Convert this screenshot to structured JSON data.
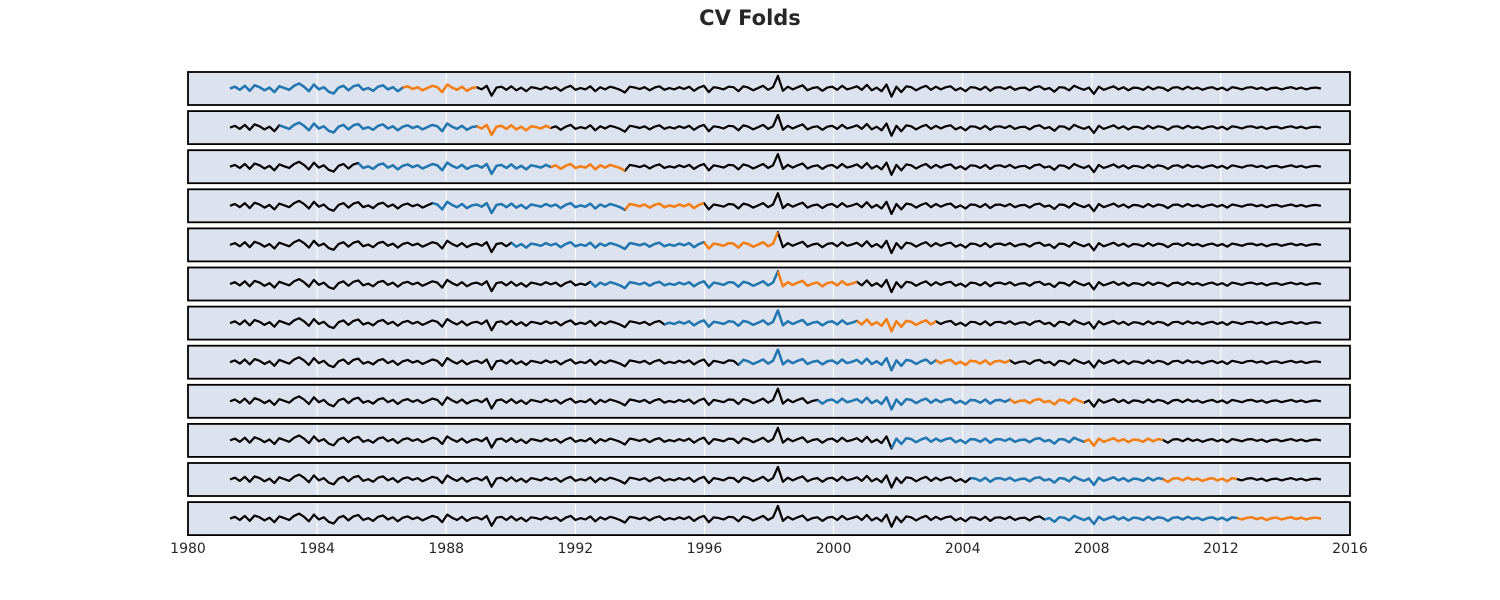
{
  "chart_data": {
    "type": "line",
    "title": "CV Folds",
    "xlabel": "",
    "ylabel": "",
    "xlim": [
      1980,
      2016
    ],
    "x_ticks": [
      "1980",
      "1984",
      "1988",
      "1992",
      "1996",
      "2000",
      "2004",
      "2008",
      "2012",
      "2016"
    ],
    "grid": true,
    "legend": "none",
    "series_x_range": [
      1981.3,
      2015.1
    ],
    "colors": {
      "full": "#000000",
      "train": "#1f77b4",
      "test": "#ff7f0e",
      "panel_bg": "#dde3ee",
      "grid": "#ffffff"
    },
    "series": [
      {
        "name": "",
        "values": [
          0.0,
          0.4,
          -0.3,
          0.6,
          -0.5,
          0.7,
          0.3,
          -0.4,
          0.2,
          -0.8,
          0.5,
          0.1,
          -0.3,
          0.6,
          1.1,
          0.4,
          -0.6,
          0.9,
          -0.2,
          0.3,
          -0.7,
          -1.1,
          0.2,
          0.6,
          -0.4,
          0.5,
          0.8,
          -0.3,
          0.1,
          -0.5,
          0.4,
          0.7,
          -0.2,
          0.3,
          -0.6,
          0.2,
          0.5,
          -0.1,
          0.3,
          -0.4,
          0.1,
          0.6,
          0.3,
          -0.8,
          0.9,
          0.2,
          -0.3,
          0.4,
          -0.5,
          0.1,
          0.3,
          -0.2,
          0.6,
          -1.6,
          0.2,
          0.4,
          -0.3,
          0.5,
          -0.4,
          0.2,
          -0.6,
          0.3,
          0.1,
          -0.2,
          0.4,
          -0.1,
          0.3,
          -0.5,
          0.2,
          0.6,
          -0.3,
          0.1,
          -0.2,
          0.5,
          -0.6,
          0.3,
          -0.2,
          0.4,
          0.1,
          -0.3,
          -0.9,
          0.4,
          0.2,
          -0.1,
          0.3,
          -0.4,
          0.2,
          0.5,
          -0.3,
          0.1,
          -0.2,
          0.3,
          -0.1,
          0.4,
          -0.5,
          0.2,
          0.6,
          -0.8,
          0.3,
          0.1,
          -0.2,
          0.4,
          0.3,
          -0.6,
          0.5,
          0.2,
          -0.4,
          0.1,
          0.6,
          -0.3,
          0.3,
          2.8,
          -0.5,
          0.4,
          -0.2,
          0.3,
          0.7,
          -0.4,
          0.1,
          0.3,
          -0.5,
          0.2,
          0.4,
          -0.3,
          0.6,
          -0.2,
          0.1,
          0.5,
          -0.3,
          0.8,
          -0.4,
          0.2,
          -0.6,
          0.9,
          -1.8,
          0.4,
          -0.8,
          0.5,
          0.3,
          -0.4,
          0.2,
          0.6,
          -0.3,
          0.4,
          -0.2,
          0.3,
          0.5,
          -0.4,
          0.1,
          -0.6,
          0.3,
          0.2,
          -0.3,
          0.4,
          -0.5,
          0.2,
          0.3,
          -0.1,
          0.4,
          -0.3,
          0.1,
          0.2,
          -0.4,
          0.3,
          0.5,
          -0.2,
          0.1,
          -0.7,
          0.3,
          0.2,
          -0.4,
          0.6,
          0.1,
          -0.3,
          0.2,
          -1.2,
          0.4,
          -0.3,
          0.1,
          0.5,
          -0.2,
          0.3,
          -0.4,
          0.2,
          0.1,
          -0.3,
          0.4,
          -0.2,
          0.3,
          0.1,
          -0.5,
          0.2,
          0.3,
          -0.2,
          0.4,
          -0.1,
          0.2,
          -0.3,
          0.1,
          0.3,
          -0.2,
          0.2,
          -0.4,
          0.3,
          0.1,
          -0.2,
          0.2,
          0.3,
          -0.1,
          0.2,
          -0.3,
          0.1,
          0.2,
          -0.2,
          0.1,
          0.3,
          -0.1,
          0.2,
          -0.2,
          0.1,
          0.2,
          0.0
        ]
      }
    ],
    "folds": [
      {
        "train": [
          1981.3,
          1986.6
        ],
        "test": [
          1986.6,
          1988.9
        ]
      },
      {
        "train": [
          1982.9,
          1988.9
        ],
        "test": [
          1988.9,
          1991.3
        ]
      },
      {
        "train": [
          1985.3,
          1991.3
        ],
        "test": [
          1991.3,
          1993.6
        ]
      },
      {
        "train": [
          1987.6,
          1993.6
        ],
        "test": [
          1993.6,
          1996.0
        ]
      },
      {
        "train": [
          1990.0,
          1996.0
        ],
        "test": [
          1996.0,
          1998.3
        ]
      },
      {
        "train": [
          1992.4,
          1998.3
        ],
        "test": [
          1998.3,
          2000.7
        ]
      },
      {
        "train": [
          1994.7,
          2000.7
        ],
        "test": [
          2000.7,
          2003.1
        ]
      },
      {
        "train": [
          1997.1,
          2003.1
        ],
        "test": [
          2003.1,
          2005.4
        ]
      },
      {
        "train": [
          1999.5,
          2005.4
        ],
        "test": [
          2005.4,
          2007.8
        ]
      },
      {
        "train": [
          2001.8,
          2007.8
        ],
        "test": [
          2007.8,
          2010.2
        ]
      },
      {
        "train": [
          2004.2,
          2010.2
        ],
        "test": [
          2010.2,
          2012.5
        ]
      },
      {
        "train": [
          2006.6,
          2012.5
        ],
        "test": [
          2012.5,
          2015.1
        ]
      }
    ]
  }
}
